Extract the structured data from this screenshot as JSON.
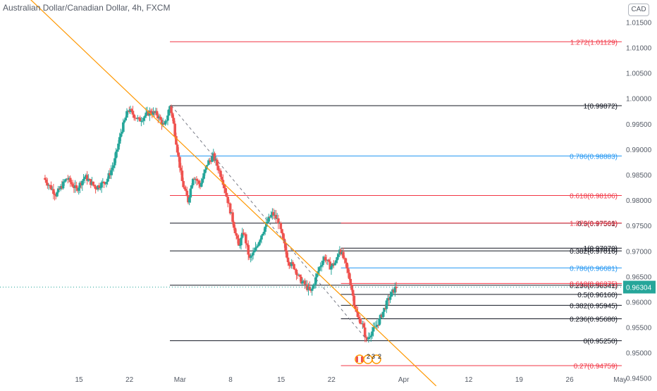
{
  "header": {
    "title": "Australian Dollar/Canadian Dollar, 4h, FXCM",
    "currency_badge": "CAD"
  },
  "events_badge": {
    "count_a": "2",
    "count_b": "3",
    "count_c": "2"
  },
  "chart_data": {
    "type": "candlestick",
    "title": "Australian Dollar/Canadian Dollar, 4h, FXCM",
    "ylim": [
      0.9433,
      1.0195
    ],
    "y_ticks": [
      {
        "value": 0.945,
        "label": "0.94500"
      },
      {
        "value": 0.95,
        "label": "0.95000"
      },
      {
        "value": 0.955,
        "label": "0.95500"
      },
      {
        "value": 0.96,
        "label": "0.96000"
      },
      {
        "value": 0.965,
        "label": "0.96500"
      },
      {
        "value": 0.97,
        "label": "0.97000"
      },
      {
        "value": 0.975,
        "label": "0.97500"
      },
      {
        "value": 0.98,
        "label": "0.98000"
      },
      {
        "value": 0.985,
        "label": "0.98500"
      },
      {
        "value": 0.99,
        "label": "0.99000"
      },
      {
        "value": 0.995,
        "label": "0.99500"
      },
      {
        "value": 1.0,
        "label": "1.00000"
      },
      {
        "value": 1.005,
        "label": "1.00500"
      },
      {
        "value": 1.01,
        "label": "1.01000"
      },
      {
        "value": 1.015,
        "label": "1.01500"
      }
    ],
    "x_ticks": [
      {
        "day": 15,
        "label": "15"
      },
      {
        "day": 22,
        "label": "22"
      },
      {
        "day": 29,
        "label": "Mar"
      },
      {
        "day": 36,
        "label": "8"
      },
      {
        "day": 43,
        "label": "15"
      },
      {
        "day": 50,
        "label": "22"
      },
      {
        "day": 60,
        "label": "Apr"
      },
      {
        "day": 69,
        "label": "12"
      },
      {
        "day": 76,
        "label": "19"
      },
      {
        "day": 83,
        "label": "26"
      },
      {
        "day": 90,
        "label": "May"
      }
    ],
    "last_price": {
      "value": 0.96304,
      "label": "0.96304",
      "color": "#26a69a"
    },
    "colors": {
      "up": "#26a69a",
      "down": "#ef5350",
      "fib_red": "#f23645",
      "fib_blue": "#2196f3",
      "fib_black": "#131722",
      "trendline": "#ff9800"
    },
    "price_path": [
      [
        10.3,
        0.9845
      ],
      [
        12.0,
        0.9812
      ],
      [
        13.5,
        0.9845
      ],
      [
        14.8,
        0.9822
      ],
      [
        16.0,
        0.9848
      ],
      [
        17.5,
        0.9826
      ],
      [
        19.0,
        0.984
      ],
      [
        20.0,
        0.9872
      ],
      [
        21.0,
        0.9935
      ],
      [
        22.0,
        0.998
      ],
      [
        23.5,
        0.9958
      ],
      [
        25.0,
        0.9975
      ],
      [
        26.0,
        0.997
      ],
      [
        27.0,
        0.9945
      ],
      [
        27.8,
        0.99872
      ],
      [
        28.3,
        0.995
      ],
      [
        28.8,
        0.99
      ],
      [
        29.5,
        0.9835
      ],
      [
        30.3,
        0.98
      ],
      [
        31.0,
        0.985
      ],
      [
        32.0,
        0.983
      ],
      [
        33.0,
        0.9875
      ],
      [
        33.8,
        0.9888
      ],
      [
        35.0,
        0.9845
      ],
      [
        35.8,
        0.98
      ],
      [
        36.5,
        0.976
      ],
      [
        37.3,
        0.971
      ],
      [
        38.0,
        0.974
      ],
      [
        38.8,
        0.9685
      ],
      [
        39.5,
        0.97
      ],
      [
        40.5,
        0.9735
      ],
      [
        41.5,
        0.9765
      ],
      [
        42.0,
        0.9775
      ],
      [
        42.8,
        0.976
      ],
      [
        43.5,
        0.972
      ],
      [
        44.2,
        0.968
      ],
      [
        45.0,
        0.967
      ],
      [
        45.8,
        0.9645
      ],
      [
        46.5,
        0.9635
      ],
      [
        47.3,
        0.962
      ],
      [
        47.8,
        0.964
      ],
      [
        48.5,
        0.967
      ],
      [
        49.2,
        0.969
      ],
      [
        50.0,
        0.967
      ],
      [
        50.8,
        0.968
      ],
      [
        51.3,
        0.9707
      ],
      [
        52.0,
        0.968
      ],
      [
        52.8,
        0.964
      ],
      [
        53.3,
        0.96
      ],
      [
        53.8,
        0.957
      ],
      [
        54.4,
        0.956
      ],
      [
        55.0,
        0.9525
      ],
      [
        55.6,
        0.954
      ],
      [
        56.2,
        0.955
      ],
      [
        56.8,
        0.9565
      ],
      [
        57.4,
        0.9585
      ],
      [
        58.0,
        0.9605
      ],
      [
        58.6,
        0.962
      ],
      [
        59.1,
        0.96304
      ]
    ],
    "fib_retracement_1": {
      "start_day": 27.6,
      "end_day": 99,
      "levels": [
        {
          "ratio": "1.272",
          "value": 1.01129,
          "label": "1.272(1.01129)",
          "color": "#f23645"
        },
        {
          "ratio": "1",
          "value": 0.99872,
          "label": "1(0.99872)",
          "color": "#131722"
        },
        {
          "ratio": "0.786",
          "value": 0.98883,
          "label": "0.786(0.98883)",
          "color": "#2196f3"
        },
        {
          "ratio": "0.618",
          "value": 0.98106,
          "label": "0.618(0.98106)",
          "color": "#f23645"
        },
        {
          "ratio": "0.5",
          "value": 0.97561,
          "label": "0.5(0.97561)",
          "color": "#131722"
        },
        {
          "ratio": "0.382",
          "value": 0.97016,
          "label": "0.382(0.97016)",
          "color": "#131722"
        },
        {
          "ratio": "0.236",
          "value": 0.96341,
          "label": "0.236(0.96341)",
          "color": "#131722"
        },
        {
          "ratio": "0",
          "value": 0.9525,
          "label": "0(0.95250)",
          "color": "#131722"
        }
      ]
    },
    "fib_retracement_2": {
      "start_day": 51.3,
      "end_day": 99,
      "levels": [
        {
          "ratio": "1.272",
          "value": 0.97563,
          "label": "1.272(0.97563)",
          "color": "#f23645"
        },
        {
          "ratio": "1",
          "value": 0.9707,
          "label": "1(0.97070)",
          "color": "#131722"
        },
        {
          "ratio": "0.786",
          "value": 0.96681,
          "label": "0.786(0.96681)",
          "color": "#2196f3"
        },
        {
          "ratio": "0.618",
          "value": 0.96375,
          "label": "0.618(0.96375)",
          "color": "#f23645"
        },
        {
          "ratio": "0.5",
          "value": 0.9616,
          "label": "0.5(0.96160)",
          "color": "#131722"
        },
        {
          "ratio": "0.382",
          "value": 0.95945,
          "label": "0.382(0.95945)",
          "color": "#131722"
        },
        {
          "ratio": "0.236",
          "value": 0.9568,
          "label": "0.236(0.95680)",
          "color": "#131722"
        },
        {
          "ratio": "0.27",
          "value": 0.94759,
          "label": "0.27(0.94759)",
          "color": "#f23645"
        }
      ]
    },
    "trendline": {
      "points": [
        [
          6.5,
          1.022
        ],
        [
          64.5,
          0.9436
        ]
      ],
      "color": "#ff9800"
    },
    "dashed_swing_line": {
      "points": [
        [
          27.8,
          0.99872
        ],
        [
          55.0,
          0.9525
        ]
      ],
      "color": "#787b86"
    }
  }
}
